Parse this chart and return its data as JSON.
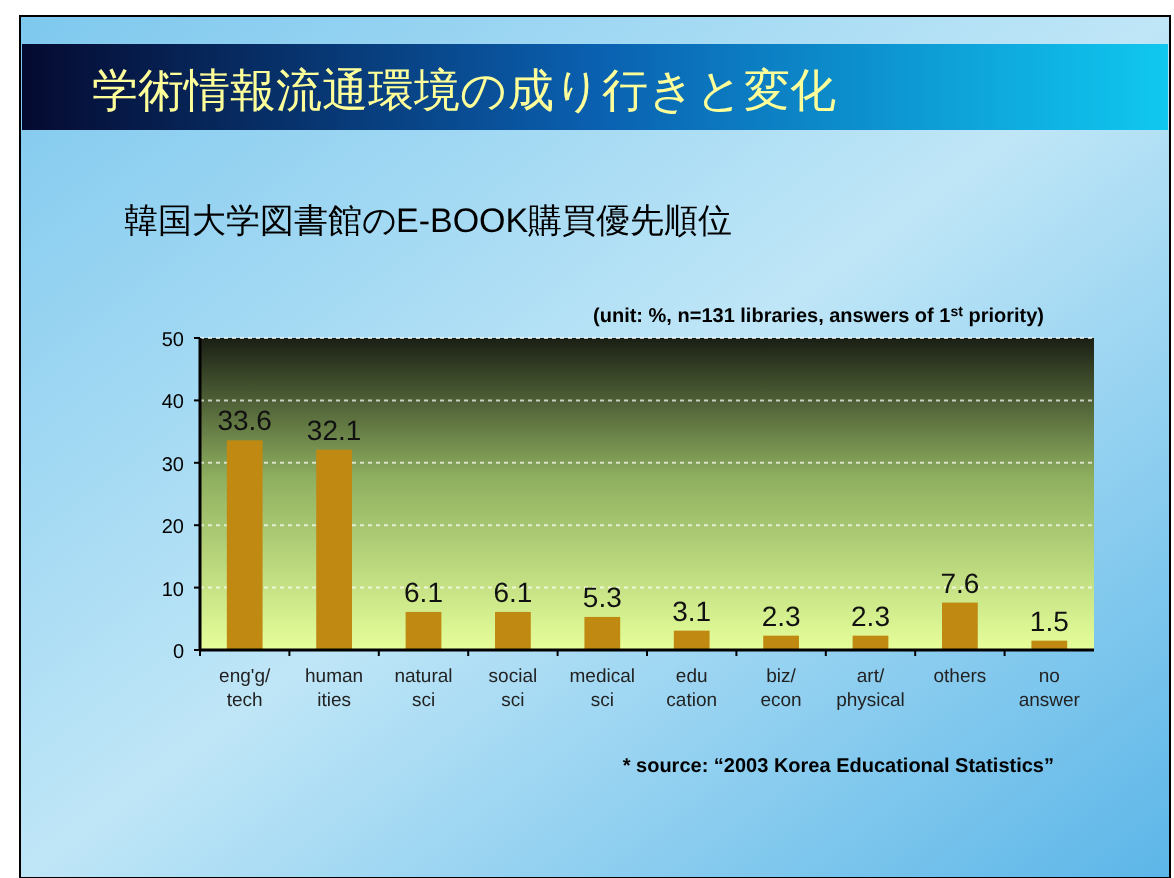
{
  "chart_data": {
    "type": "bar",
    "title": "学術情報流通環境の成り行きと変化",
    "subtitle": "韓国大学図書館のE-BOOK購買優先順位",
    "annotations": [
      "(unit: %,  n=131 libraries, answers of 1$^{st}$ priority)",
      "* source: “2003 Korea Educational Statistics”"
    ],
    "categories": [
      "eng'g/\ntech",
      "human\nities",
      "natural\nsci",
      "social\nsci",
      "medical\nsci",
      "edu\ncation",
      "biz/\necon",
      "art/\nphysical",
      "others",
      "no\nanswer"
    ],
    "values": [
      33.6,
      32.1,
      6.1,
      6.1,
      5.3,
      3.1,
      2.3,
      2.3,
      7.6,
      1.5
    ],
    "color": "#c08a12",
    "ylim": [
      0,
      50
    ],
    "yticks": [
      0,
      10,
      20,
      30,
      40,
      50
    ],
    "grid": "y",
    "data_labels": true
  }
}
